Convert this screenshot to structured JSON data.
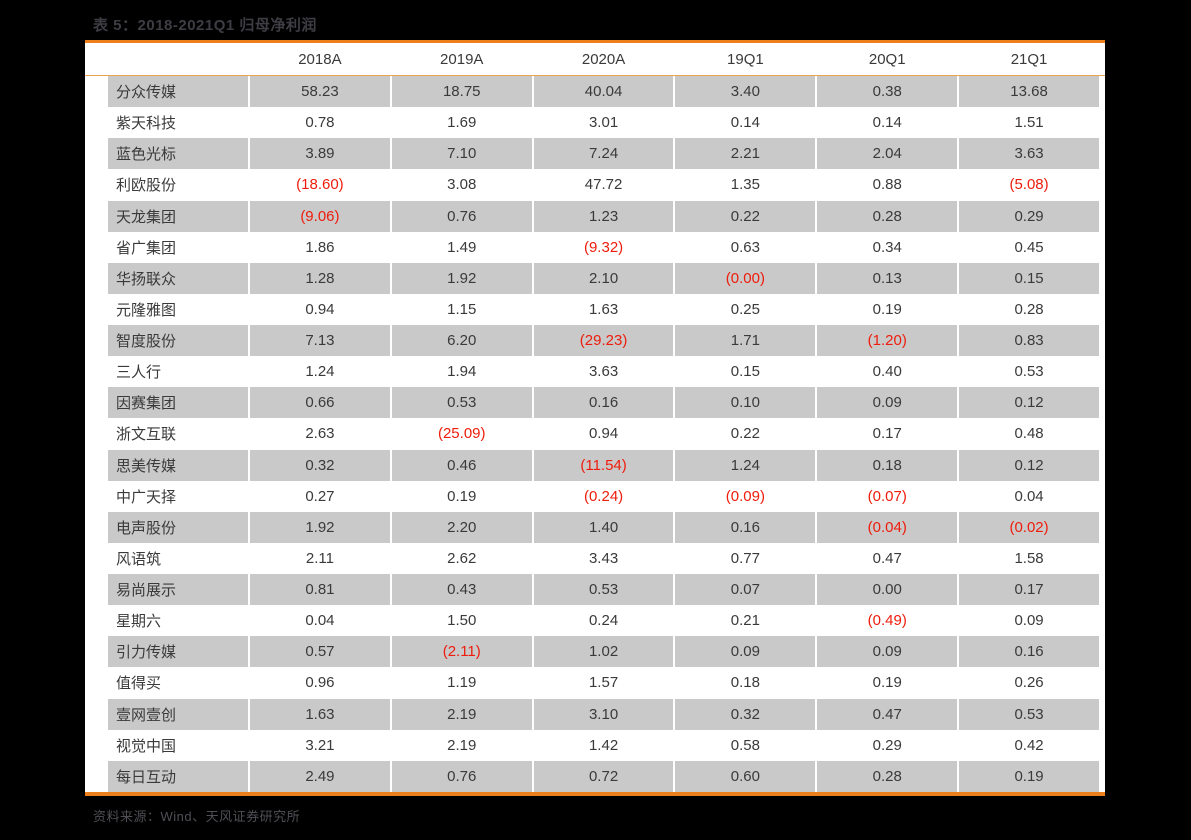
{
  "title": "表 5：2018-2021Q1 归母净利润",
  "source_note": "资料来源：Wind、天风证券研究所",
  "colors": {
    "background": "#000000",
    "panel": "#ffffff",
    "accent_orange": "#ee7f1d",
    "header_underline_orange": "#eda452",
    "row_stripe_gray": "#c9c9c9",
    "text": "#3a3a3a",
    "negative_red": "#ee1c0c",
    "title_gray": "#3d3d44",
    "footer_gray": "#4f4f55"
  },
  "chart_data": {
    "type": "table",
    "title": "表 5：2018-2021Q1 归母净利润",
    "columns": [
      "",
      "2018A",
      "2019A",
      "2020A",
      "19Q1",
      "20Q1",
      "21Q1"
    ],
    "rows": [
      {
        "name": "分众传媒",
        "values": [
          "58.23",
          "18.75",
          "40.04",
          "3.40",
          "0.38",
          "13.68"
        ]
      },
      {
        "name": "紫天科技",
        "values": [
          "0.78",
          "1.69",
          "3.01",
          "0.14",
          "0.14",
          "1.51"
        ]
      },
      {
        "name": "蓝色光标",
        "values": [
          "3.89",
          "7.10",
          "7.24",
          "2.21",
          "2.04",
          "3.63"
        ]
      },
      {
        "name": "利欧股份",
        "values": [
          "(18.60)",
          "3.08",
          "47.72",
          "1.35",
          "0.88",
          "(5.08)"
        ]
      },
      {
        "name": "天龙集团",
        "values": [
          "(9.06)",
          "0.76",
          "1.23",
          "0.22",
          "0.28",
          "0.29"
        ]
      },
      {
        "name": "省广集团",
        "values": [
          "1.86",
          "1.49",
          "(9.32)",
          "0.63",
          "0.34",
          "0.45"
        ]
      },
      {
        "name": "华扬联众",
        "values": [
          "1.28",
          "1.92",
          "2.10",
          "(0.00)",
          "0.13",
          "0.15"
        ]
      },
      {
        "name": "元隆雅图",
        "values": [
          "0.94",
          "1.15",
          "1.63",
          "0.25",
          "0.19",
          "0.28"
        ]
      },
      {
        "name": "智度股份",
        "values": [
          "7.13",
          "6.20",
          "(29.23)",
          "1.71",
          "(1.20)",
          "0.83"
        ]
      },
      {
        "name": "三人行",
        "values": [
          "1.24",
          "1.94",
          "3.63",
          "0.15",
          "0.40",
          "0.53"
        ]
      },
      {
        "name": "因赛集团",
        "values": [
          "0.66",
          "0.53",
          "0.16",
          "0.10",
          "0.09",
          "0.12"
        ]
      },
      {
        "name": "浙文互联",
        "values": [
          "2.63",
          "(25.09)",
          "0.94",
          "0.22",
          "0.17",
          "0.48"
        ]
      },
      {
        "name": "思美传媒",
        "values": [
          "0.32",
          "0.46",
          "(11.54)",
          "1.24",
          "0.18",
          "0.12"
        ]
      },
      {
        "name": "中广天择",
        "values": [
          "0.27",
          "0.19",
          "(0.24)",
          "(0.09)",
          "(0.07)",
          "0.04"
        ]
      },
      {
        "name": "电声股份",
        "values": [
          "1.92",
          "2.20",
          "1.40",
          "0.16",
          "(0.04)",
          "(0.02)"
        ]
      },
      {
        "name": "风语筑",
        "values": [
          "2.11",
          "2.62",
          "3.43",
          "0.77",
          "0.47",
          "1.58"
        ]
      },
      {
        "name": "易尚展示",
        "values": [
          "0.81",
          "0.43",
          "0.53",
          "0.07",
          "0.00",
          "0.17"
        ]
      },
      {
        "name": "星期六",
        "values": [
          "0.04",
          "1.50",
          "0.24",
          "0.21",
          "(0.49)",
          "0.09"
        ]
      },
      {
        "name": "引力传媒",
        "values": [
          "0.57",
          "(2.11)",
          "1.02",
          "0.09",
          "0.09",
          "0.16"
        ]
      },
      {
        "name": "值得买",
        "values": [
          "0.96",
          "1.19",
          "1.57",
          "0.18",
          "0.19",
          "0.26"
        ]
      },
      {
        "name": "壹网壹创",
        "values": [
          "1.63",
          "2.19",
          "3.10",
          "0.32",
          "0.47",
          "0.53"
        ]
      },
      {
        "name": "视觉中国",
        "values": [
          "3.21",
          "2.19",
          "1.42",
          "0.58",
          "0.29",
          "0.42"
        ]
      },
      {
        "name": "每日互动",
        "values": [
          "2.49",
          "0.76",
          "0.72",
          "0.60",
          "0.28",
          "0.19"
        ]
      }
    ],
    "notes": "负值以红色括号形式显示；奇数行为灰色条纹底色",
    "legend_position": "none",
    "grid": false
  }
}
